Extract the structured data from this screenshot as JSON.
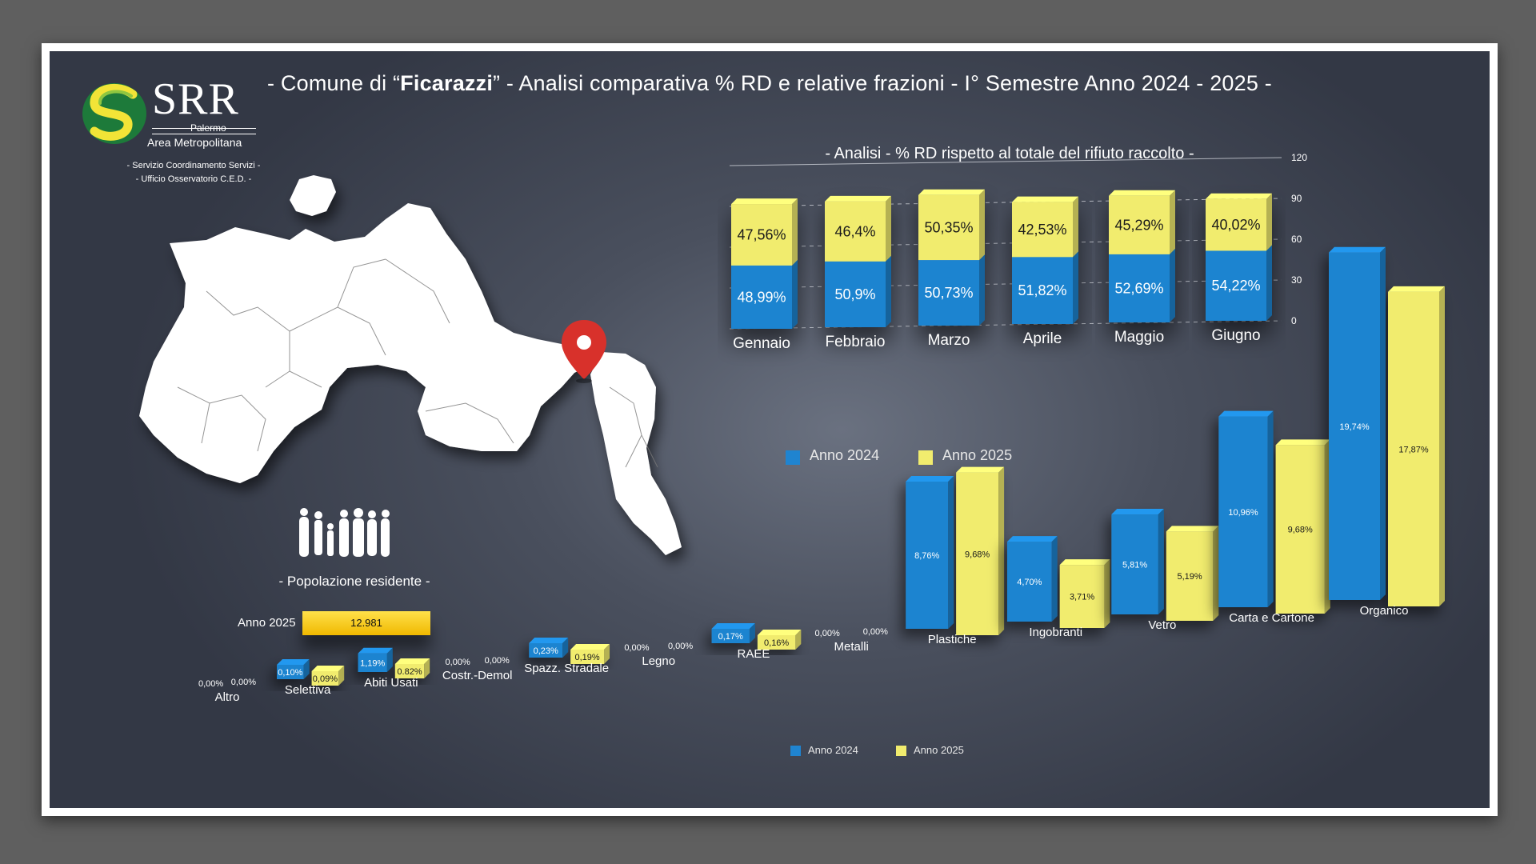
{
  "header": {
    "title_prefix": "- Comune di “",
    "title_town": "Ficarazzi",
    "title_suffix": "” - Analisi comparativa % RD e relative frazioni - I° Semestre Anno 2024 - 2025 -"
  },
  "logo": {
    "name": "SRR",
    "line1": "Palermo",
    "line2": "Area Metropolitana",
    "office1": "- Servizio Coordinamento Servizi -",
    "office2": "- Ufficio Osservatorio C.E.D. -"
  },
  "population": {
    "label": "- Popolazione residente -",
    "year_label": "Anno 2025",
    "value": "12.981"
  },
  "colors": {
    "anno_2024": "#1f84d0",
    "anno_2025": "#f1ec6e"
  },
  "chart_data": [
    {
      "type": "bar",
      "title": "- Analisi - % RD rispetto al totale del rifiuto raccolto -",
      "categories": [
        "Gennaio",
        "Febbraio",
        "Marzo",
        "Aprile",
        "Maggio",
        "Giugno"
      ],
      "series": [
        {
          "name": "Anno 2024",
          "values": [
            48.99,
            50.9,
            50.73,
            51.82,
            52.69,
            54.22
          ],
          "labels": [
            "48,99%",
            "50,9%",
            "50,73%",
            "51,82%",
            "52,69%",
            "54,22%"
          ]
        },
        {
          "name": "Anno 2025",
          "values": [
            47.56,
            46.4,
            50.35,
            42.53,
            45.29,
            40.02
          ],
          "labels": [
            "47,56%",
            "46,4%",
            "50,35%",
            "42,53%",
            "45,29%",
            "40,02%"
          ]
        }
      ],
      "stacked": true,
      "ylim": [
        0,
        120
      ],
      "yticks": [
        "0",
        "30",
        "60",
        "90",
        "120"
      ],
      "legend": [
        "Anno 2024",
        "Anno 2025"
      ]
    },
    {
      "type": "bar",
      "categories": [
        "Altro",
        "Selettiva",
        "Abiti Usati",
        "Costr.-Demol",
        "Spazz. Stradale",
        "Legno",
        "RAEE",
        "Metalli",
        "Plastiche",
        "Ingobranti",
        "Vetro",
        "Carta e Cartone",
        "Organico"
      ],
      "series": [
        {
          "name": "Anno 2024",
          "values": [
            0,
            0.1,
            1.19,
            0,
            0.23,
            0,
            0.17,
            0,
            8.76,
            4.7,
            5.81,
            10.96,
            19.74
          ],
          "labels": [
            "0,00%",
            "0,10%",
            "1,19%",
            "0,00%",
            "0,23%",
            "0,00%",
            "0,17%",
            "0,00%",
            "8,76%",
            "4,70%",
            "5,81%",
            "10,96%",
            "19,74%"
          ]
        },
        {
          "name": "Anno 2025",
          "values": [
            0,
            0.09,
            0.82,
            0,
            0.19,
            0,
            0.16,
            0,
            9.68,
            3.71,
            5.19,
            9.68,
            17.87
          ],
          "labels": [
            "0,00%",
            "0,09%",
            "0.82%",
            "0,00%",
            "0,19%",
            "0,00%",
            "0,16%",
            "0,00%",
            "9,68%",
            "3,71%",
            "5,19%",
            "9,68%",
            "17,87%"
          ]
        }
      ],
      "legend": [
        "Anno 2024",
        "Anno 2025"
      ]
    }
  ]
}
